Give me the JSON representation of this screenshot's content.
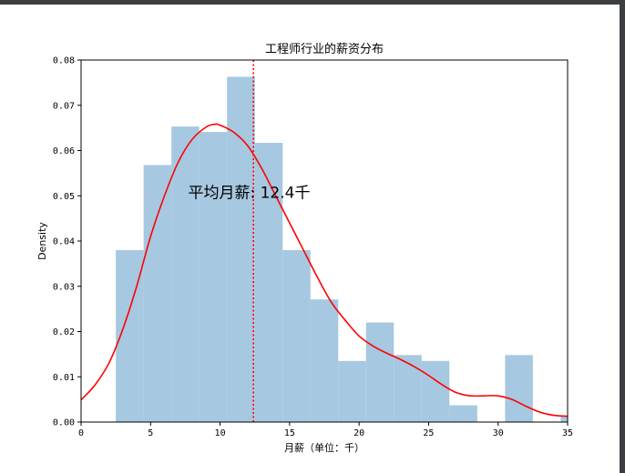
{
  "chart_data": {
    "type": "bar",
    "title": "工程师行业的薪资分布",
    "xlabel": "月薪（单位：千）",
    "ylabel": "Density",
    "xlim": [
      0,
      35
    ],
    "ylim": [
      0,
      0.08
    ],
    "xticks": [
      0,
      5,
      10,
      15,
      20,
      25,
      30,
      35
    ],
    "yticks": [
      0.0,
      0.01,
      0.02,
      0.03,
      0.04,
      0.05,
      0.06,
      0.07,
      0.08
    ],
    "grid": false,
    "histogram": {
      "color": "#a6c8e0",
      "bins": [
        {
          "start": 2.5,
          "end": 4.5,
          "density": 0.038
        },
        {
          "start": 4.5,
          "end": 6.5,
          "density": 0.0568
        },
        {
          "start": 6.5,
          "end": 8.5,
          "density": 0.0653
        },
        {
          "start": 8.5,
          "end": 10.5,
          "density": 0.0641
        },
        {
          "start": 10.5,
          "end": 12.5,
          "density": 0.0763
        },
        {
          "start": 12.5,
          "end": 14.5,
          "density": 0.0617
        },
        {
          "start": 14.5,
          "end": 16.5,
          "density": 0.038
        },
        {
          "start": 16.5,
          "end": 18.5,
          "density": 0.0271
        },
        {
          "start": 18.5,
          "end": 20.5,
          "density": 0.0135
        },
        {
          "start": 20.5,
          "end": 22.5,
          "density": 0.022
        },
        {
          "start": 22.5,
          "end": 24.5,
          "density": 0.0148
        },
        {
          "start": 24.5,
          "end": 26.5,
          "density": 0.0135
        },
        {
          "start": 26.5,
          "end": 28.5,
          "density": 0.0037
        },
        {
          "start": 28.5,
          "end": 30.5,
          "density": 0.0
        },
        {
          "start": 30.5,
          "end": 32.5,
          "density": 0.0148
        },
        {
          "start": 32.5,
          "end": 34.5,
          "density": 0.0
        },
        {
          "start": 34.5,
          "end": 36.5,
          "density": 0.0012
        }
      ]
    },
    "kde": {
      "color": "#ff0000",
      "x": [
        0,
        1,
        2,
        3,
        4,
        5,
        6,
        7,
        8,
        9,
        9.6,
        10,
        11,
        12,
        13,
        14,
        15,
        16,
        17,
        18,
        19,
        20,
        21,
        22,
        23,
        24,
        25,
        26,
        27,
        28,
        29,
        30,
        31,
        32,
        33,
        34,
        35
      ],
      "y": [
        0.0049,
        0.0082,
        0.013,
        0.0205,
        0.03,
        0.041,
        0.05,
        0.0575,
        0.0625,
        0.0652,
        0.0658,
        0.0656,
        0.064,
        0.061,
        0.056,
        0.05,
        0.044,
        0.038,
        0.032,
        0.0265,
        0.0225,
        0.019,
        0.0168,
        0.0152,
        0.0138,
        0.0122,
        0.0103,
        0.0082,
        0.0065,
        0.0058,
        0.0058,
        0.0058,
        0.005,
        0.0035,
        0.0022,
        0.0015,
        0.0013
      ]
    },
    "mean_line": {
      "value": 12.4,
      "color": "#ff0000",
      "style": "dotted"
    },
    "annotation": {
      "text": "平均月薪: 12.4千",
      "x": 7.7,
      "y": 0.0495
    }
  }
}
